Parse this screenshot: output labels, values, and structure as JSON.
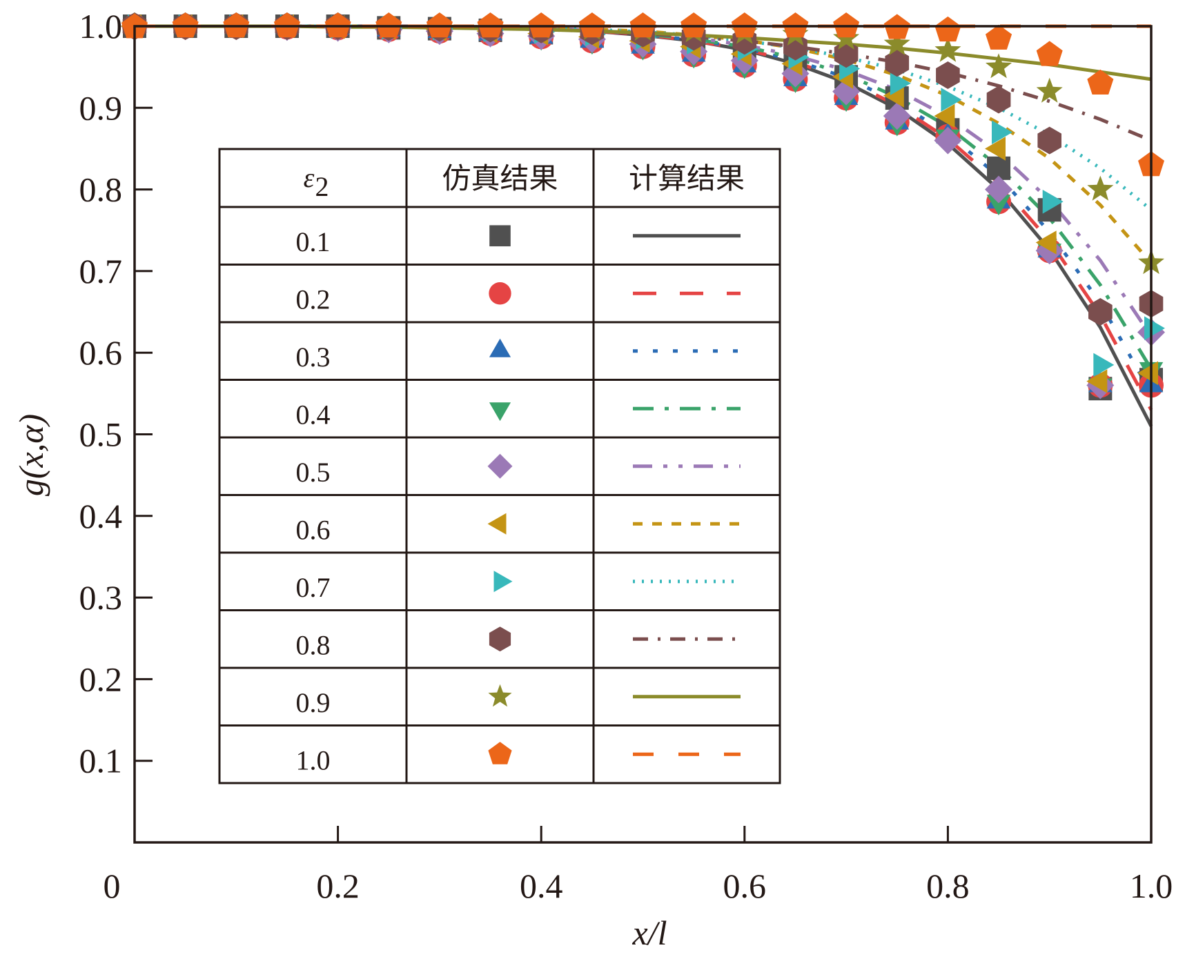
{
  "chart_data": {
    "type": "line",
    "title": "",
    "xlabel": "x/l",
    "ylabel": "g(x,α)",
    "xlim": [
      0,
      1.0
    ],
    "ylim": [
      0,
      1.0
    ],
    "xticks": [
      "0",
      "0.2",
      "0.4",
      "0.6",
      "0.8",
      "1.0"
    ],
    "xtick_values": [
      0,
      0.2,
      0.4,
      0.6,
      0.8,
      1.0
    ],
    "yticks": [
      "0.1",
      "0.2",
      "0.3",
      "0.4",
      "0.5",
      "0.6",
      "0.7",
      "0.8",
      "0.9",
      "1.0"
    ],
    "ytick_values": [
      0.1,
      0.2,
      0.3,
      0.4,
      0.5,
      0.6,
      0.7,
      0.8,
      0.9,
      1.0
    ],
    "grid": false,
    "legend": {
      "placement": "center-left",
      "header": {
        "param": "ε",
        "param_sub": "2",
        "sim": "仿真结果",
        "calc": "计算结果"
      }
    },
    "x": [
      0,
      0.05,
      0.1,
      0.15,
      0.2,
      0.25,
      0.3,
      0.35,
      0.4,
      0.45,
      0.5,
      0.55,
      0.6,
      0.65,
      0.7,
      0.75,
      0.8,
      0.85,
      0.9,
      0.95,
      1.0
    ],
    "series": [
      {
        "name": "0.1",
        "marker": "square",
        "dash": "solid",
        "color": "#505050",
        "values": [
          1,
          1,
          1,
          1,
          1,
          1,
          0.999,
          0.999,
          0.997,
          0.994,
          0.989,
          0.982,
          0.971,
          0.954,
          0.931,
          0.899,
          0.856,
          0.8,
          0.726,
          0.631,
          0.51
        ],
        "sim_values": [
          1,
          1,
          1,
          1,
          1,
          0.998,
          0.997,
          0.995,
          0.992,
          0.988,
          0.983,
          0.977,
          0.969,
          0.955,
          0.938,
          0.912,
          0.873,
          0.826,
          0.775,
          0.556,
          0.567
        ]
      },
      {
        "name": "0.2",
        "marker": "circle",
        "dash": "dashed",
        "color": "#e54444",
        "values": [
          1,
          1,
          1,
          1,
          1,
          1,
          0.999,
          0.999,
          0.997,
          0.994,
          0.99,
          0.982,
          0.972,
          0.956,
          0.934,
          0.903,
          0.862,
          0.808,
          0.737,
          0.646,
          0.53
        ],
        "sim_values": [
          1,
          1,
          1,
          0.999,
          0.998,
          0.996,
          0.994,
          0.991,
          0.987,
          0.982,
          0.975,
          0.965,
          0.952,
          0.935,
          0.912,
          0.882,
          0.865,
          0.785,
          0.725,
          0.56,
          0.56
        ]
      },
      {
        "name": "0.3",
        "marker": "triangle-up",
        "dash": "dotted",
        "color": "#2b6cb5",
        "values": [
          1,
          1,
          1,
          1,
          1,
          1,
          0.999,
          0.999,
          0.997,
          0.995,
          0.99,
          0.983,
          0.973,
          0.958,
          0.937,
          0.907,
          0.868,
          0.816,
          0.748,
          0.661,
          0.55
        ],
        "sim_values": [
          1,
          1,
          1,
          0.999,
          0.998,
          0.996,
          0.994,
          0.991,
          0.987,
          0.982,
          0.975,
          0.965,
          0.952,
          0.935,
          0.912,
          0.882,
          0.865,
          0.785,
          0.725,
          0.56,
          0.56
        ]
      },
      {
        "name": "0.4",
        "marker": "triangle-down",
        "dash": "dash-dot",
        "color": "#3aa36a",
        "values": [
          1,
          1,
          1,
          1,
          1,
          1,
          0.999,
          0.999,
          0.997,
          0.995,
          0.991,
          0.984,
          0.975,
          0.961,
          0.941,
          0.913,
          0.877,
          0.828,
          0.765,
          0.683,
          0.58
        ],
        "sim_values": [
          1,
          1,
          1,
          0.999,
          0.998,
          0.996,
          0.994,
          0.991,
          0.987,
          0.982,
          0.975,
          0.965,
          0.952,
          0.935,
          0.912,
          0.882,
          0.865,
          0.785,
          0.725,
          0.56,
          0.58
        ]
      },
      {
        "name": "0.5",
        "marker": "diamond",
        "dash": "dash-dot-dot",
        "color": "#9b79b6",
        "values": [
          1,
          1,
          1,
          1,
          1,
          1,
          0.999,
          0.999,
          0.998,
          0.995,
          0.992,
          0.986,
          0.977,
          0.964,
          0.946,
          0.922,
          0.889,
          0.845,
          0.787,
          0.713,
          0.62
        ],
        "sim_values": [
          1,
          1,
          1,
          0.999,
          0.998,
          0.996,
          0.994,
          0.991,
          0.988,
          0.984,
          0.978,
          0.969,
          0.958,
          0.942,
          0.92,
          0.89,
          0.86,
          0.8,
          0.725,
          0.56,
          0.625
        ]
      },
      {
        "name": "0.6",
        "marker": "triangle-left",
        "dash": "short-dash",
        "color": "#c49414",
        "values": [
          1,
          1,
          1,
          1,
          1,
          1,
          1,
          0.999,
          0.998,
          0.996,
          0.994,
          0.989,
          0.983,
          0.973,
          0.959,
          0.94,
          0.915,
          0.881,
          0.838,
          0.781,
          0.71
        ],
        "sim_values": [
          1,
          1,
          1,
          1,
          0.999,
          0.998,
          0.996,
          0.994,
          0.991,
          0.987,
          0.982,
          0.975,
          0.966,
          0.954,
          0.938,
          0.915,
          0.89,
          0.85,
          0.735,
          0.565,
          0.575
        ]
      },
      {
        "name": "0.7",
        "marker": "triangle-right",
        "dash": "fine-dotted",
        "color": "#38b8bb",
        "values": [
          1,
          1,
          1,
          1,
          1,
          1,
          1,
          0.999,
          0.998,
          0.996,
          0.993,
          0.989,
          0.982,
          0.974,
          0.962,
          0.947,
          0.926,
          0.9,
          0.867,
          0.826,
          0.775
        ],
        "sim_values": [
          1,
          1,
          1,
          1,
          0.999,
          0.998,
          0.997,
          0.995,
          0.993,
          0.99,
          0.986,
          0.98,
          0.972,
          0.962,
          0.948,
          0.93,
          0.91,
          0.87,
          0.785,
          0.585,
          0.63
        ]
      },
      {
        "name": "0.8",
        "marker": "hexagon",
        "dash": "long-dash-dot",
        "color": "#7b4e4e",
        "values": [
          1,
          1,
          1,
          1,
          1,
          1,
          1,
          0.999,
          0.996,
          0.994,
          0.991,
          0.987,
          0.982,
          0.975,
          0.966,
          0.956,
          0.943,
          0.927,
          0.908,
          0.886,
          0.86
        ],
        "sim_values": [
          1,
          1,
          1,
          1,
          1,
          0.999,
          0.998,
          0.997,
          0.996,
          0.994,
          0.991,
          0.987,
          0.982,
          0.975,
          0.966,
          0.955,
          0.94,
          0.91,
          0.86,
          0.65,
          0.66
        ]
      },
      {
        "name": "0.9",
        "marker": "star",
        "dash": "solid",
        "color": "#8b8b2b",
        "values": [
          1,
          1,
          1,
          1,
          0.999,
          0.999,
          0.998,
          0.997,
          0.996,
          0.994,
          0.992,
          0.989,
          0.986,
          0.982,
          0.978,
          0.973,
          0.967,
          0.96,
          0.953,
          0.944,
          0.935
        ],
        "sim_values": [
          1,
          1,
          1,
          1,
          1,
          1,
          0.999,
          0.999,
          0.998,
          0.997,
          0.996,
          0.994,
          0.992,
          0.99,
          0.985,
          0.978,
          0.97,
          0.95,
          0.92,
          0.8,
          0.71
        ]
      },
      {
        "name": "1.0",
        "marker": "pentagon",
        "dash": "long-dash",
        "color": "#ec6619",
        "values": [
          1,
          1,
          1,
          1,
          1,
          1,
          1,
          1,
          1,
          1,
          1,
          1,
          1,
          1,
          1,
          1,
          1,
          1,
          1,
          1,
          1
        ],
        "sim_values": [
          0.999,
          1,
          1,
          1,
          1,
          1,
          1,
          1,
          1,
          1,
          1,
          1,
          1,
          1,
          1,
          0.998,
          0.995,
          0.985,
          0.965,
          0.93,
          0.83
        ]
      }
    ]
  }
}
